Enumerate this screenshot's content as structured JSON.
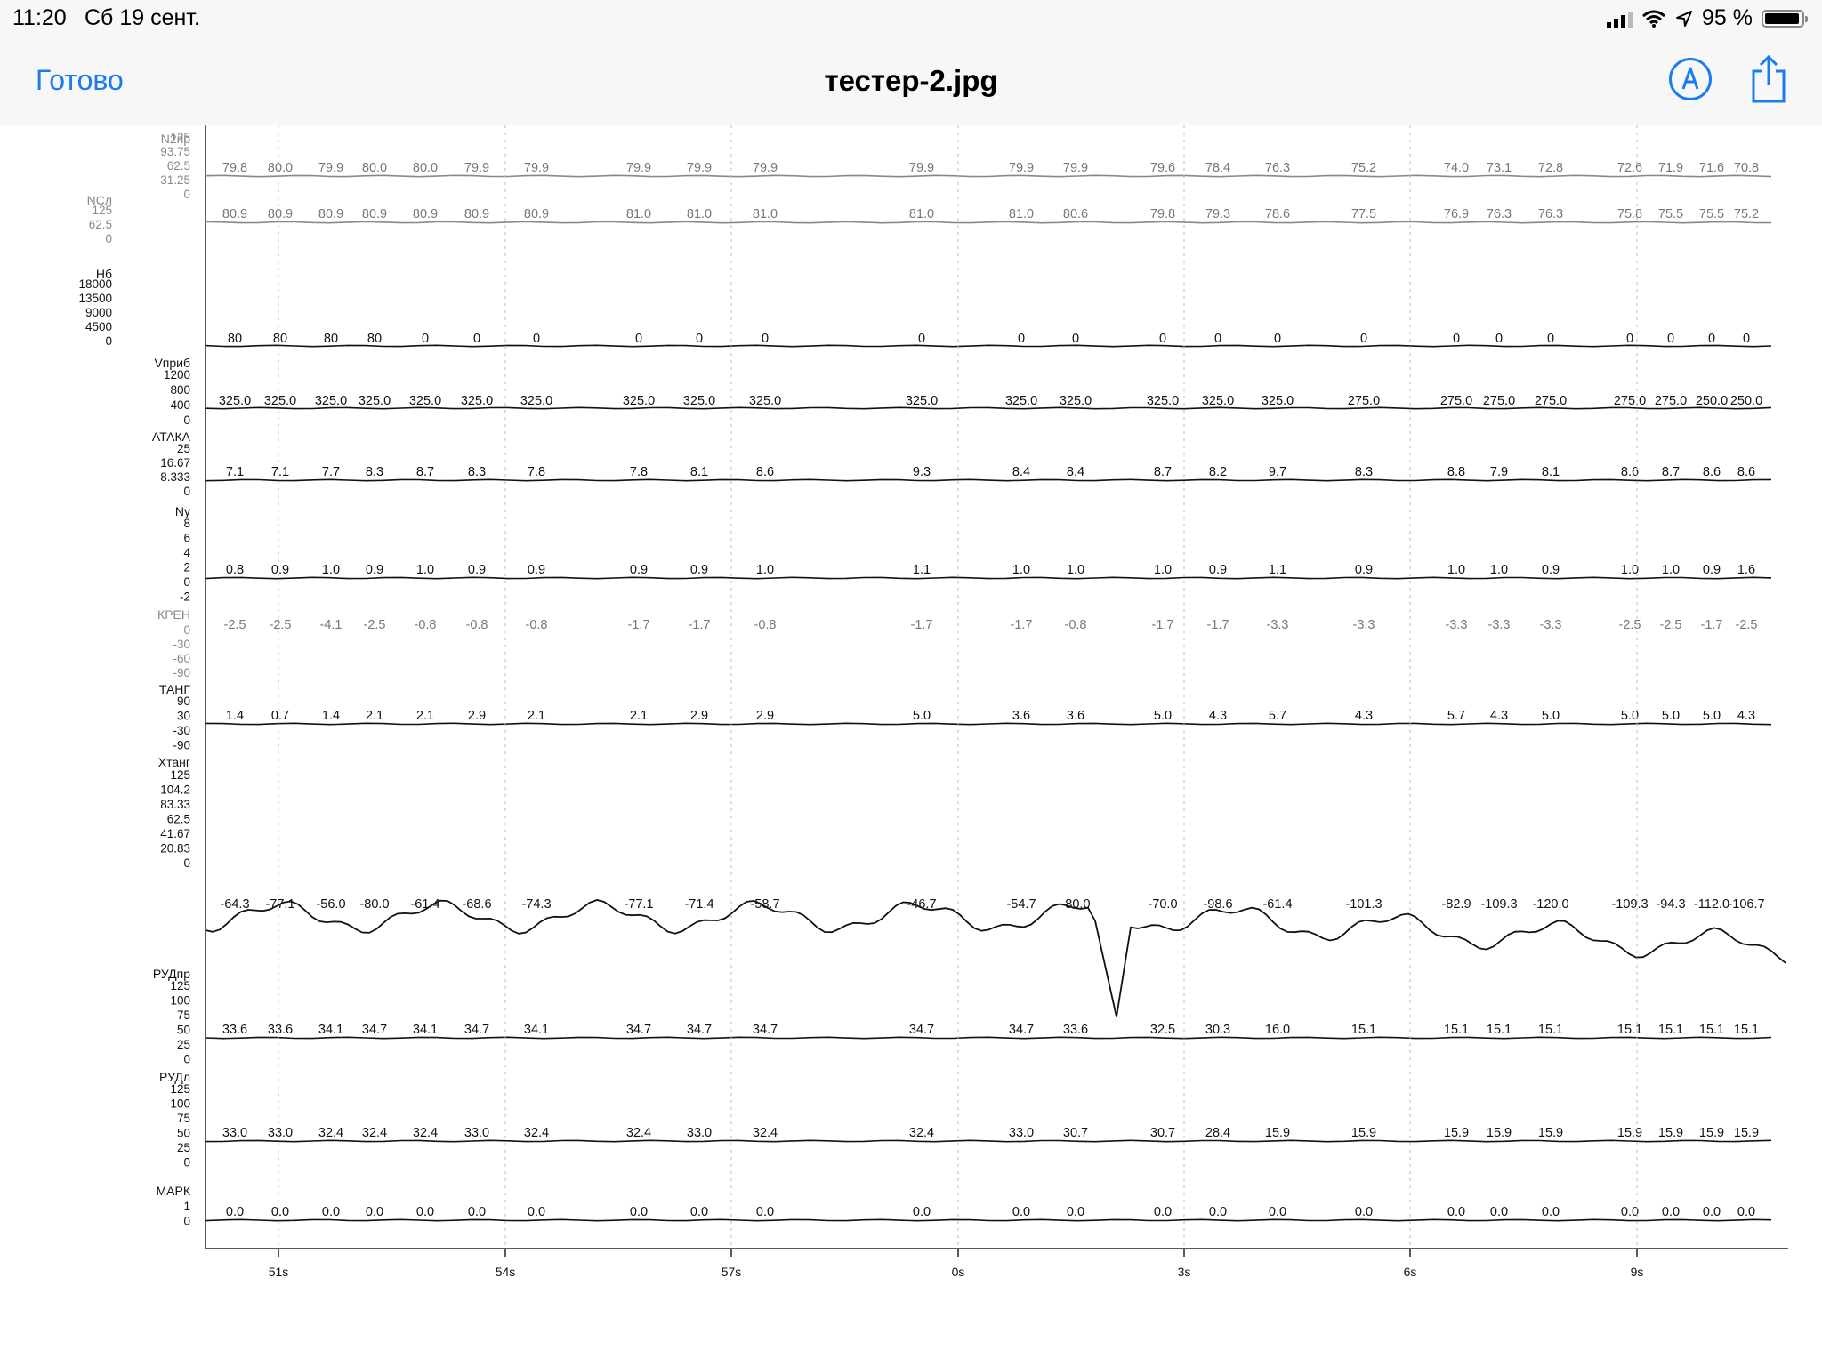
{
  "status_bar": {
    "time": "11:20",
    "date": "Сб 19 сент.",
    "battery_percent": "95 %",
    "battery_level": 0.95,
    "icons": [
      "cellular-signal-icon",
      "wifi-icon",
      "location-arrow-icon",
      "battery-icon"
    ]
  },
  "navbar": {
    "done_label": "Готово",
    "title": "тестер-2.jpg",
    "icons": [
      "markup-icon",
      "share-icon"
    ]
  },
  "document": {
    "time_axis_labels": [
      "51s",
      "54s",
      "57s",
      "0s",
      "3s",
      "6s",
      "9s"
    ],
    "sample_columns": [
      {
        "n2": "79.8",
        "nd": "80.9",
        "nb": "80",
        "v": "325.0",
        "at": "7.1",
        "ny": "0.8",
        "kr": "-2.5",
        "tg": "1.4",
        "xt": "-64.3",
        "ruda": "33.6",
        "rudl": "33.0",
        "mk": "0.0"
      },
      {
        "n2": "80.0",
        "nd": "80.9",
        "nb": "80",
        "v": "325.0",
        "at": "7.1",
        "ny": "0.9",
        "kr": "-2.5",
        "tg": "0.7",
        "xt": "-77.1",
        "ruda": "33.6",
        "rudl": "33.0",
        "mk": "0.0"
      },
      {
        "n2": "79.9",
        "nd": "80.9",
        "nb": "80",
        "v": "325.0",
        "at": "7.7",
        "ny": "1.0",
        "kr": "-4.1",
        "tg": "1.4",
        "xt": "-56.0",
        "ruda": "34.1",
        "rudl": "32.4",
        "mk": "0.0"
      },
      {
        "n2": "80.0",
        "nd": "80.9",
        "nb": "80",
        "v": "325.0",
        "at": "8.3",
        "ny": "0.9",
        "kr": "-2.5",
        "tg": "2.1",
        "xt": "-80.0",
        "ruda": "34.7",
        "rudl": "32.4",
        "mk": "0.0"
      },
      {
        "n2": "80.0",
        "nd": "80.9",
        "nb": "0",
        "v": "325.0",
        "at": "8.7",
        "ny": "1.0",
        "kr": "-0.8",
        "tg": "2.1",
        "xt": "-61.4",
        "ruda": "34.1",
        "rudl": "32.4",
        "mk": "0.0"
      },
      {
        "n2": "79.9",
        "nd": "80.9",
        "nb": "0",
        "v": "325.0",
        "at": "8.3",
        "ny": "0.9",
        "kr": "-0.8",
        "tg": "2.9",
        "xt": "-68.6",
        "ruda": "34.7",
        "rudl": "33.0",
        "mk": "0.0"
      },
      {
        "n2": "79.9",
        "nd": "80.9",
        "nb": "0",
        "v": "325.0",
        "at": "7.8",
        "ny": "0.9",
        "kr": "-0.8",
        "tg": "2.1",
        "xt": "-74.3",
        "ruda": "34.1",
        "rudl": "32.4",
        "mk": "0.0"
      },
      {
        "n2": "79.9",
        "nd": "81.0",
        "nb": "0",
        "v": "325.0",
        "at": "7.8",
        "ny": "0.9",
        "kr": "-1.7",
        "tg": "2.1",
        "xt": "-77.1",
        "ruda": "34.7",
        "rudl": "32.4",
        "mk": "0.0"
      },
      {
        "n2": "79.9",
        "nd": "81.0",
        "nb": "0",
        "v": "325.0",
        "at": "8.1",
        "ny": "0.9",
        "kr": "-1.7",
        "tg": "2.9",
        "xt": "-71.4",
        "ruda": "34.7",
        "rudl": "33.0",
        "mk": "0.0"
      },
      {
        "n2": "79.9",
        "nd": "81.0",
        "nb": "0",
        "v": "325.0",
        "at": "8.6",
        "ny": "1.0",
        "kr": "-0.8",
        "tg": "2.9",
        "xt": "-58.7",
        "ruda": "34.7",
        "rudl": "32.4",
        "mk": "0.0"
      },
      {
        "n2": "79.9",
        "nd": "81.0",
        "nb": "0",
        "v": "325.0",
        "at": "9.3",
        "ny": "1.1",
        "kr": "-1.7",
        "tg": "5.0",
        "xt": "-46.7",
        "ruda": "34.7",
        "rudl": "32.4",
        "mk": "0.0"
      },
      {
        "n2": "79.9",
        "nd": "81.0",
        "nb": "0",
        "v": "325.0",
        "at": "8.4",
        "ny": "1.0",
        "kr": "-1.7",
        "tg": "3.6",
        "xt": "-54.7",
        "ruda": "34.7",
        "rudl": "33.0",
        "mk": "0.0"
      },
      {
        "n2": "79.9",
        "nd": "80.6",
        "nb": "0",
        "v": "325.0",
        "at": "8.4",
        "ny": "1.0",
        "kr": "-0.8",
        "tg": "3.6",
        "xt": "-80.0",
        "ruda": "33.6",
        "rudl": "30.7",
        "mk": "0.0"
      },
      {
        "n2": "79.6",
        "nd": "79.8",
        "nb": "0",
        "v": "325.0",
        "at": "8.7",
        "ny": "1.0",
        "kr": "-1.7",
        "tg": "5.0",
        "xt": "-70.0",
        "ruda": "32.5",
        "rudl": "30.7",
        "mk": "0.0"
      },
      {
        "n2": "78.4",
        "nd": "79.3",
        "nb": "0",
        "v": "325.0",
        "at": "8.2",
        "ny": "0.9",
        "kr": "-1.7",
        "tg": "4.3",
        "xt": "-98.6",
        "ruda": "30.3",
        "rudl": "28.4",
        "mk": "0.0"
      },
      {
        "n2": "76.3",
        "nd": "78.6",
        "nb": "0",
        "v": "325.0",
        "at": "9.7",
        "ny": "1.1",
        "kr": "-3.3",
        "tg": "5.7",
        "xt": "-61.4",
        "ruda": "16.0",
        "rudl": "15.9",
        "mk": "0.0"
      },
      {
        "n2": "75.2",
        "nd": "77.5",
        "nb": "0",
        "v": "275.0",
        "at": "8.3",
        "ny": "0.9",
        "kr": "-3.3",
        "tg": "4.3",
        "xt": "-101.3",
        "ruda": "15.1",
        "rudl": "15.9",
        "mk": "0.0"
      },
      {
        "n2": "74.0",
        "nd": "76.9",
        "nb": "0",
        "v": "275.0",
        "at": "8.8",
        "ny": "1.0",
        "kr": "-3.3",
        "tg": "5.7",
        "xt": "-82.9",
        "ruda": "15.1",
        "rudl": "15.9",
        "mk": "0.0"
      },
      {
        "n2": "73.1",
        "nd": "76.3",
        "nb": "0",
        "v": "275.0",
        "at": "7.9",
        "ny": "1.0",
        "kr": "-3.3",
        "tg": "4.3",
        "xt": "-109.3",
        "ruda": "15.1",
        "rudl": "15.9",
        "mk": "0.0"
      },
      {
        "n2": "72.8",
        "nd": "76.3",
        "nb": "0",
        "v": "275.0",
        "at": "8.1",
        "ny": "0.9",
        "kr": "-3.3",
        "tg": "5.0",
        "xt": "-120.0",
        "ruda": "15.1",
        "rudl": "15.9",
        "mk": "0.0"
      },
      {
        "n2": "72.6",
        "nd": "75.8",
        "nb": "0",
        "v": "275.0",
        "at": "8.6",
        "ny": "1.0",
        "kr": "-2.5",
        "tg": "5.0",
        "xt": "-109.3",
        "ruda": "15.1",
        "rudl": "15.9",
        "mk": "0.0"
      },
      {
        "n2": "71.9",
        "nd": "75.5",
        "nb": "0",
        "v": "275.0",
        "at": "8.7",
        "ny": "1.0",
        "kr": "-2.5",
        "tg": "5.0",
        "xt": "-94.3",
        "ruda": "15.1",
        "rudl": "15.9",
        "mk": "0.0"
      },
      {
        "n2": "71.6",
        "nd": "75.5",
        "nb": "0",
        "v": "250.0",
        "at": "8.6",
        "ny": "0.9",
        "kr": "-1.7",
        "tg": "5.0",
        "xt": "-112.0",
        "ruda": "15.1",
        "rudl": "15.9",
        "mk": "0.0"
      },
      {
        "n2": "70.8",
        "nd": "75.2",
        "nb": "0",
        "v": "250.0",
        "at": "8.6",
        "ny": "1.6",
        "kr": "-2.5",
        "tg": "4.3",
        "xt": "-106.7",
        "ruda": "15.1",
        "rudl": "15.9",
        "mk": "0.0"
      }
    ],
    "channels": [
      {
        "key": "n2",
        "name": "N2пр",
        "ticks": [
          "125",
          "93.75",
          "62.5",
          "31.25",
          "0"
        ],
        "faint": true
      },
      {
        "key": "nd",
        "name": "NСл",
        "ticks": [
          "125",
          "62.5",
          "0"
        ],
        "faint": true
      },
      {
        "key": "nb",
        "name": "Нб",
        "ticks": [
          "18000",
          "13500",
          "9000",
          "4500",
          "0"
        ],
        "faint": false
      },
      {
        "key": "v",
        "name": "Vприб",
        "ticks": [
          "1200",
          "800",
          "400",
          "0"
        ],
        "faint": false
      },
      {
        "key": "at",
        "name": "АТАКА",
        "ticks": [
          "25",
          "16.67",
          "8.333",
          "0"
        ],
        "faint": false
      },
      {
        "key": "ny",
        "name": "Ny",
        "ticks": [
          "8",
          "6",
          "4",
          "2",
          "0",
          "-2"
        ],
        "faint": false
      },
      {
        "key": "kr",
        "name": "КРЕН",
        "ticks": [
          "0",
          "-30",
          "-60",
          "-90"
        ],
        "faint": true
      },
      {
        "key": "tg",
        "name": "ТАНГ",
        "ticks": [
          "90",
          "30",
          "-30",
          "-90"
        ],
        "faint": false
      },
      {
        "key": "xt",
        "name": "Хтанг",
        "ticks": [
          "125",
          "104.2",
          "83.33",
          "62.5",
          "41.67",
          "20.83",
          "0"
        ],
        "faint": false
      },
      {
        "key": "ruda",
        "name": "РУДпр",
        "ticks": [
          "125",
          "100",
          "75",
          "50",
          "25",
          "0"
        ],
        "faint": false
      },
      {
        "key": "rudl",
        "name": "РУДл",
        "ticks": [
          "125",
          "100",
          "75",
          "50",
          "25",
          "0"
        ],
        "faint": false
      },
      {
        "key": "mk",
        "name": "МАРК",
        "ticks": [
          "1",
          "0"
        ],
        "faint": false
      }
    ]
  }
}
